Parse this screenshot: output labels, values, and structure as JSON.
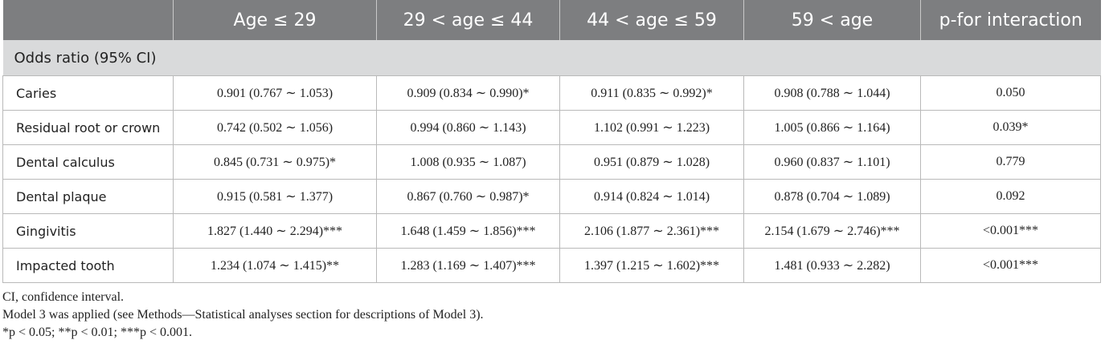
{
  "headers": [
    "",
    "Age ≤ 29",
    "29 < age ≤ 44",
    "44 < age ≤ 59",
    "59 < age",
    "p-for interaction"
  ],
  "section_label": "Odds ratio (95% CI)",
  "rows": [
    {
      "label": "Caries",
      "c1": "0.901 (0.767 ∼ 1.053)",
      "c2": "0.909 (0.834 ∼ 0.990)*",
      "c3": "0.911 (0.835 ∼ 0.992)*",
      "c4": "0.908 (0.788 ∼ 1.044)",
      "p": "0.050"
    },
    {
      "label": "Residual root or crown",
      "c1": "0.742 (0.502 ∼ 1.056)",
      "c2": "0.994 (0.860 ∼ 1.143)",
      "c3": "1.102 (0.991 ∼ 1.223)",
      "c4": "1.005 (0.866 ∼ 1.164)",
      "p": "0.039*"
    },
    {
      "label": "Dental calculus",
      "c1": "0.845 (0.731 ∼ 0.975)*",
      "c2": "1.008 (0.935 ∼ 1.087)",
      "c3": "0.951 (0.879 ∼ 1.028)",
      "c4": "0.960 (0.837 ∼ 1.101)",
      "p": "0.779"
    },
    {
      "label": "Dental plaque",
      "c1": "0.915 (0.581 ∼ 1.377)",
      "c2": "0.867 (0.760 ∼ 0.987)*",
      "c3": "0.914 (0.824 ∼ 1.014)",
      "c4": "0.878 (0.704 ∼ 1.089)",
      "p": "0.092"
    },
    {
      "label": "Gingivitis",
      "c1": "1.827 (1.440 ∼ 2.294)***",
      "c2": "1.648 (1.459 ∼ 1.856)***",
      "c3": "2.106 (1.877 ∼ 2.361)***",
      "c4": "2.154 (1.679 ∼ 2.746)***",
      "p": "<0.001***"
    },
    {
      "label": "Impacted tooth",
      "c1": "1.234 (1.074 ∼ 1.415)**",
      "c2": "1.283 (1.169 ∼ 1.407)***",
      "c3": "1.397 (1.215 ∼ 1.602)***",
      "c4": "1.481 (0.933 ∼ 2.282)",
      "p": "<0.001***"
    }
  ],
  "notes": {
    "line1": "CI, confidence interval.",
    "line2": "Model 3 was applied (see Methods—Statistical analyses section for descriptions of Model 3).",
    "line3": "*p < 0.05; **p < 0.01; ***p < 0.001."
  }
}
